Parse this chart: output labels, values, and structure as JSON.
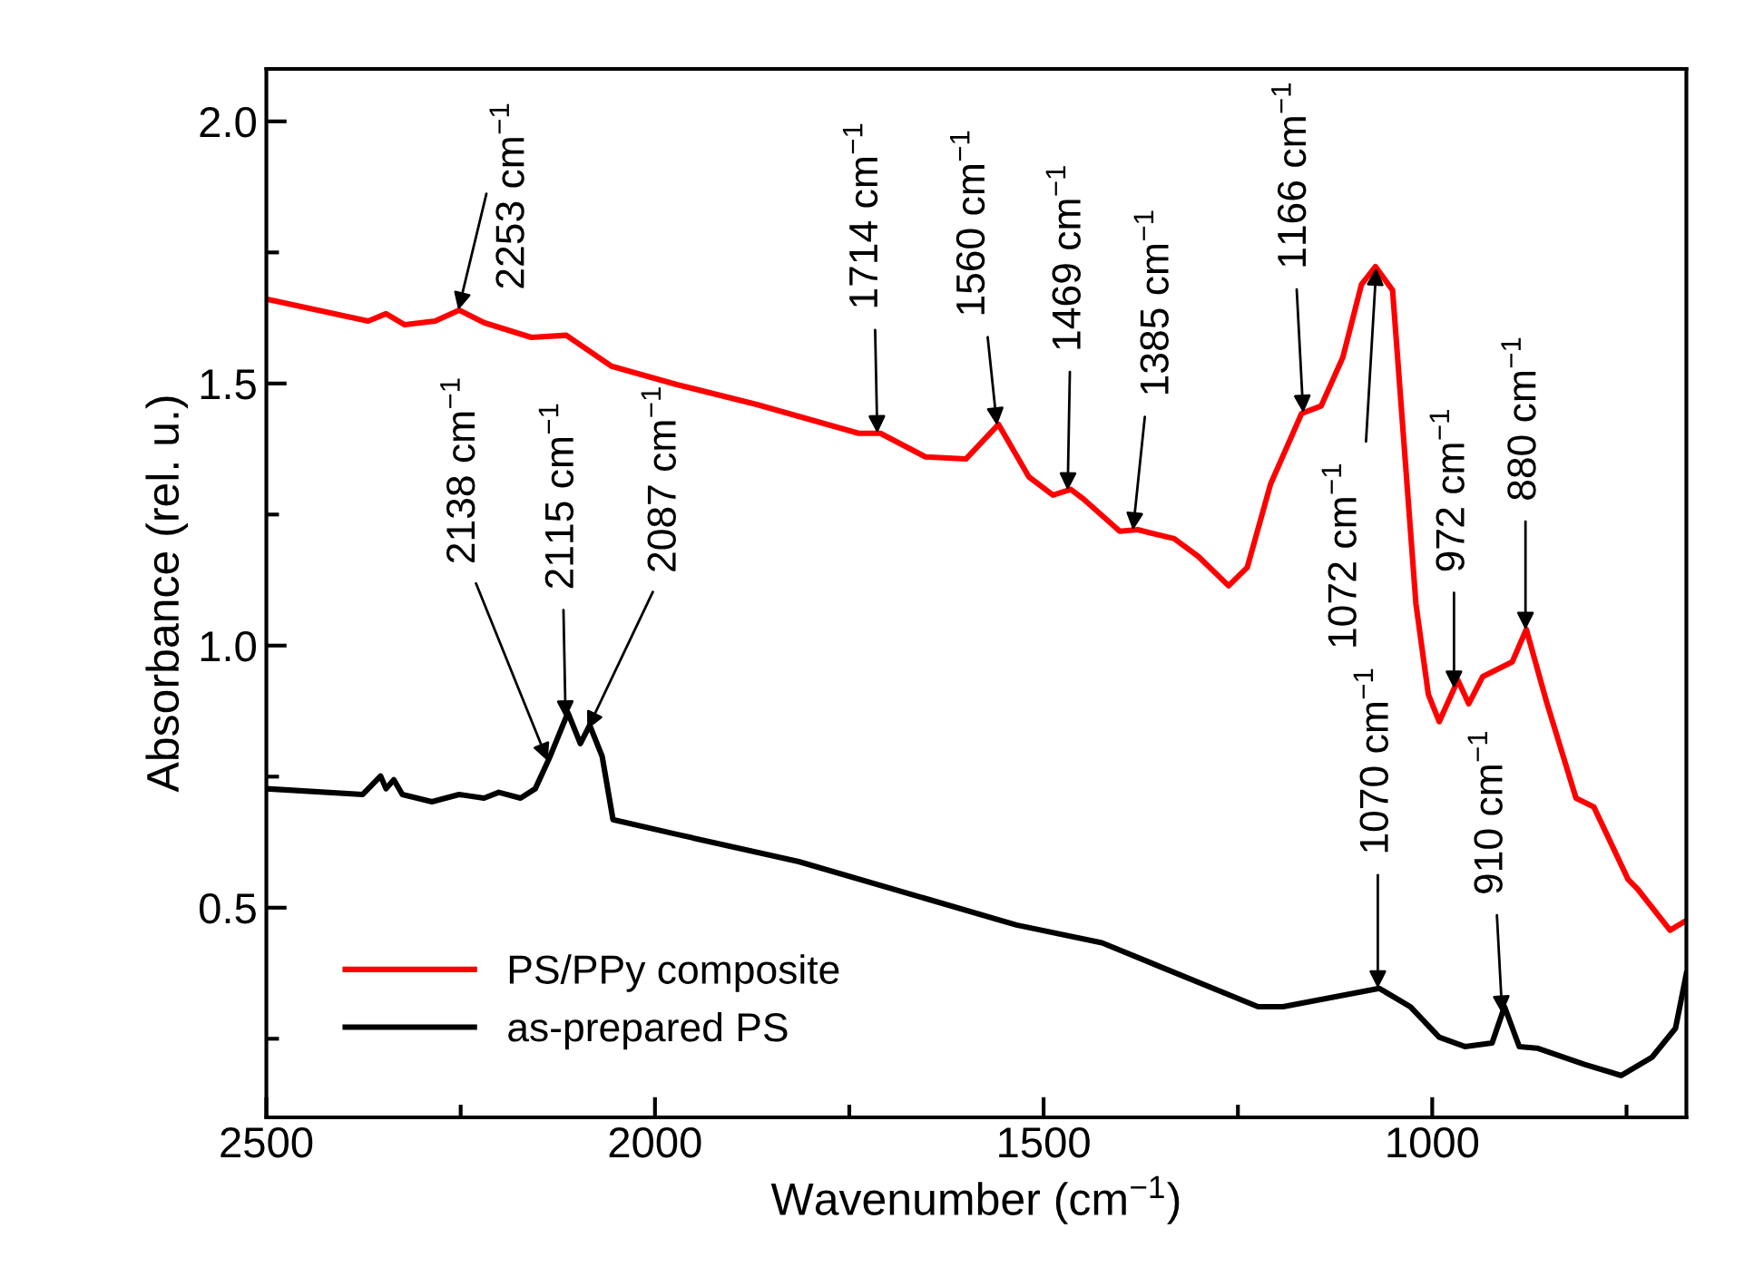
{
  "chart_data": {
    "type": "line",
    "xlabel": "Wavenumber (cm$^{−1}$)",
    "ylabel": "Absorbance (rel. u.)",
    "xlim": [
      2500,
      673
    ],
    "ylim": [
      0.1,
      2.1
    ],
    "xticks": [
      2500,
      {
        "value": 2250,
        "label": null
      },
      2000,
      {
        "value": 1750,
        "label": null
      },
      1500,
      {
        "value": 1250,
        "label": null
      },
      1000,
      {
        "value": 750,
        "label": null
      }
    ],
    "yticks": [
      {
        "value": 0.25,
        "label": null
      },
      0.5,
      {
        "value": 0.75,
        "label": null
      },
      {
        "value": 1.0,
        "label": "1.0"
      },
      {
        "value": 1.25,
        "label": null
      },
      1.5,
      {
        "value": 1.75,
        "label": null
      },
      {
        "value": 2.0,
        "label": "2.0"
      }
    ],
    "legend": "bottom left",
    "grid": false,
    "marker": "none",
    "line_style": "solid",
    "series": [
      {
        "name": "PS/PPy composite",
        "color": "#ff0000",
        "x": [
          2500,
          2369,
          2346,
          2322,
          2283,
          2252,
          2220,
          2159,
          2114,
          2056,
          1972,
          1869,
          1738,
          1710,
          1652,
          1600,
          1558,
          1519,
          1488,
          1465,
          1449,
          1402,
          1379,
          1332,
          1301,
          1262,
          1238,
          1208,
          1168,
          1143,
          1115,
          1091,
          1073,
          1051,
          1021,
          1005,
          991,
          967,
          953,
          935,
          897,
          879,
          853,
          815,
          792,
          748,
          736,
          694,
          675
        ],
        "values": [
          1.661,
          1.619,
          1.633,
          1.612,
          1.619,
          1.64,
          1.616,
          1.588,
          1.592,
          1.533,
          1.498,
          1.46,
          1.405,
          1.405,
          1.36,
          1.356,
          1.422,
          1.322,
          1.287,
          1.298,
          1.28,
          1.218,
          1.221,
          1.204,
          1.17,
          1.114,
          1.149,
          1.308,
          1.443,
          1.457,
          1.55,
          1.689,
          1.723,
          1.678,
          1.08,
          0.907,
          0.855,
          0.934,
          0.889,
          0.941,
          0.969,
          1.031,
          0.893,
          0.709,
          0.692,
          0.554,
          0.536,
          0.457,
          0.474
        ]
      },
      {
        "name": "as-prepared PS",
        "color": "#000000",
        "x": [
          2500,
          2376,
          2353,
          2346,
          2336,
          2325,
          2287,
          2252,
          2220,
          2201,
          2173,
          2154,
          2136,
          2112,
          2096,
          2084,
          2068,
          2054,
          1972,
          1815,
          1535,
          1425,
          1224,
          1192,
          1068,
          1028,
          991,
          958,
          923,
          907,
          888,
          865,
          804,
          757,
          717,
          687,
          673
        ],
        "values": [
          0.727,
          0.716,
          0.751,
          0.727,
          0.744,
          0.716,
          0.702,
          0.716,
          0.709,
          0.72,
          0.709,
          0.727,
          0.785,
          0.872,
          0.813,
          0.848,
          0.789,
          0.668,
          0.64,
          0.588,
          0.467,
          0.433,
          0.311,
          0.311,
          0.346,
          0.311,
          0.253,
          0.235,
          0.242,
          0.311,
          0.235,
          0.232,
          0.201,
          0.18,
          0.215,
          0.27,
          0.374
        ]
      }
    ],
    "annotations": [
      {
        "text": "2253 cm$^{−1}$",
        "x": 2253,
        "y": 1.64
      },
      {
        "text": "1714 cm$^{−1}$",
        "x": 1714,
        "y": 1.405
      },
      {
        "text": "1560 cm$^{−1}$",
        "x": 1560,
        "y": 1.42
      },
      {
        "text": "1469 cm$^{−1}$",
        "x": 1469,
        "y": 1.296
      },
      {
        "text": "1385 cm$^{−1}$",
        "x": 1385,
        "y": 1.22
      },
      {
        "text": "1166 cm$^{−1}$",
        "x": 1166,
        "y": 1.444
      },
      {
        "text": "1072 cm$^{−1}$",
        "x": 1072,
        "y": 1.721
      },
      {
        "text": "972 cm$^{−1}$",
        "x": 972,
        "y": 0.918
      },
      {
        "text": "880 cm$^{−1}$",
        "x": 880,
        "y": 1.03
      },
      {
        "text": "2138 cm$^{−1}$",
        "x": 2138,
        "y": 0.78
      },
      {
        "text": "2115 cm$^{−1}$",
        "x": 2115,
        "y": 0.861
      },
      {
        "text": "2087 cm$^{−1}$",
        "x": 2087,
        "y": 0.84
      },
      {
        "text": "1070 cm$^{−1}$",
        "x": 1070,
        "y": 0.346
      },
      {
        "text": "910 cm$^{−1}$",
        "x": 910,
        "y": 0.298
      }
    ]
  }
}
